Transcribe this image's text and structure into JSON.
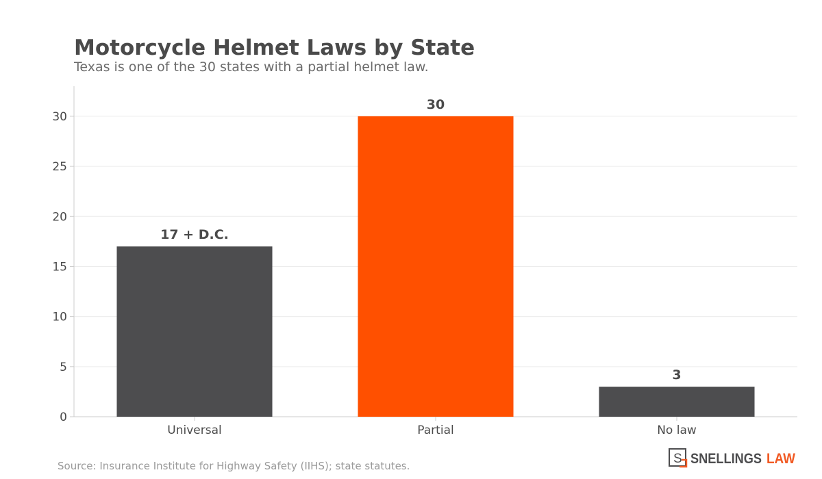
{
  "title": "Motorcycle Helmet Laws by State",
  "subtitle": "Texas is one of the 30 states with a partial helmet law.",
  "source": "Source: Insurance Institute for Highway Safety (IIHS); state statutes.",
  "logo": {
    "mark": "S",
    "name": "SNELLINGS",
    "name_accent": "LAW"
  },
  "colors": {
    "default_bar": "#4d4d4f",
    "highlight_bar": "#ff5000",
    "logo_accent": "#f15a24"
  },
  "chart_data": {
    "type": "bar",
    "categories": [
      "Universal",
      "Partial",
      "No law"
    ],
    "values": [
      17,
      30,
      3
    ],
    "data_labels": [
      "17 + D.C.",
      "30",
      "3"
    ],
    "highlight_index": 1,
    "ylim": [
      0,
      33
    ],
    "yticks": [
      0,
      5,
      10,
      15,
      20,
      25,
      30
    ],
    "grid": true,
    "xlabel": "",
    "ylabel": ""
  }
}
